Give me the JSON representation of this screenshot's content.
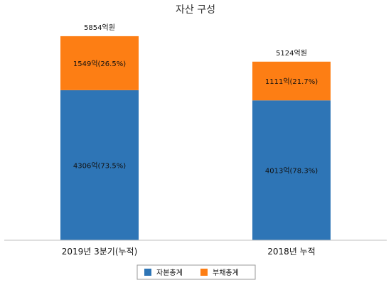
{
  "chart_data": {
    "type": "bar",
    "stacked": true,
    "title": "자산 구성",
    "categories": [
      "2019년 3분기(누적)",
      "2018년 누적"
    ],
    "totals": [
      5854,
      5124
    ],
    "total_labels": [
      "5854억원",
      "5124억원"
    ],
    "series": [
      {
        "name": "자본총계",
        "color": "#2e75b6",
        "values": [
          4306,
          4013
        ],
        "labels": [
          "4306억(73.5%)",
          "4013억(78.3%)"
        ]
      },
      {
        "name": "부채총계",
        "color": "#fd7e14",
        "values": [
          1549,
          1111
        ],
        "labels": [
          "1549억(26.5%)",
          "1111억(21.7%)"
        ]
      }
    ],
    "ylim": [
      0,
      6200
    ],
    "grid": false,
    "legend_position": "bottom"
  }
}
